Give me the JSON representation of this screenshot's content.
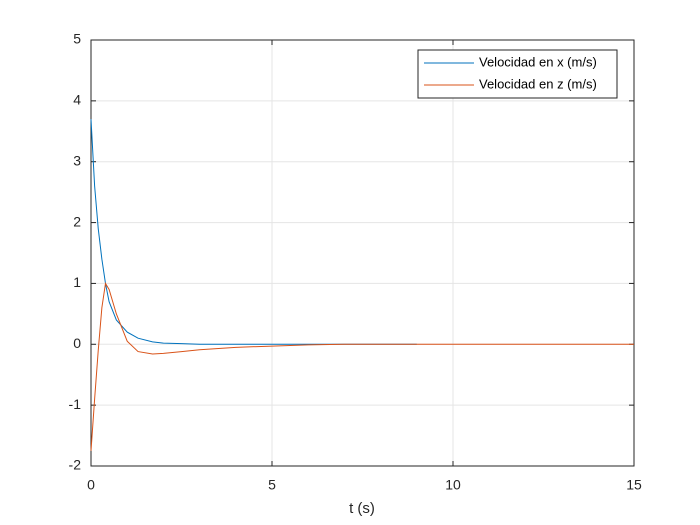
{
  "chart_data": {
    "type": "line",
    "xlabel": "t (s)",
    "x": [
      0,
      0.1,
      0.2,
      0.3,
      0.4,
      0.5,
      0.7,
      1,
      1.3,
      1.7,
      2,
      2.5,
      3,
      4,
      5,
      6,
      7,
      8,
      9,
      12,
      15
    ],
    "series": [
      {
        "name": "Velocidad en x (m/s)",
        "color": "#0072bd",
        "values": [
          3.7,
          2.6,
          1.9,
          1.4,
          1.0,
          0.7,
          0.4,
          0.2,
          0.1,
          0.04,
          0.02,
          0.01,
          0,
          0,
          0,
          0,
          0,
          0,
          0,
          null,
          null
        ]
      },
      {
        "name": "Velocidad en z (m/s)",
        "color": "#d95319",
        "values": [
          -1.75,
          -0.9,
          -0.1,
          0.6,
          1.0,
          0.9,
          0.5,
          0.05,
          -0.12,
          -0.16,
          -0.15,
          -0.12,
          -0.09,
          -0.05,
          -0.03,
          -0.01,
          0,
          0,
          0,
          0,
          0
        ]
      }
    ],
    "xlim": [
      0,
      15
    ],
    "xticks": [
      0,
      5,
      10,
      15
    ],
    "ylim": [
      -2,
      5
    ],
    "yticks": [
      -2,
      -1,
      0,
      1,
      2,
      3,
      4,
      5
    ],
    "grid": true,
    "legend": "northeast"
  }
}
